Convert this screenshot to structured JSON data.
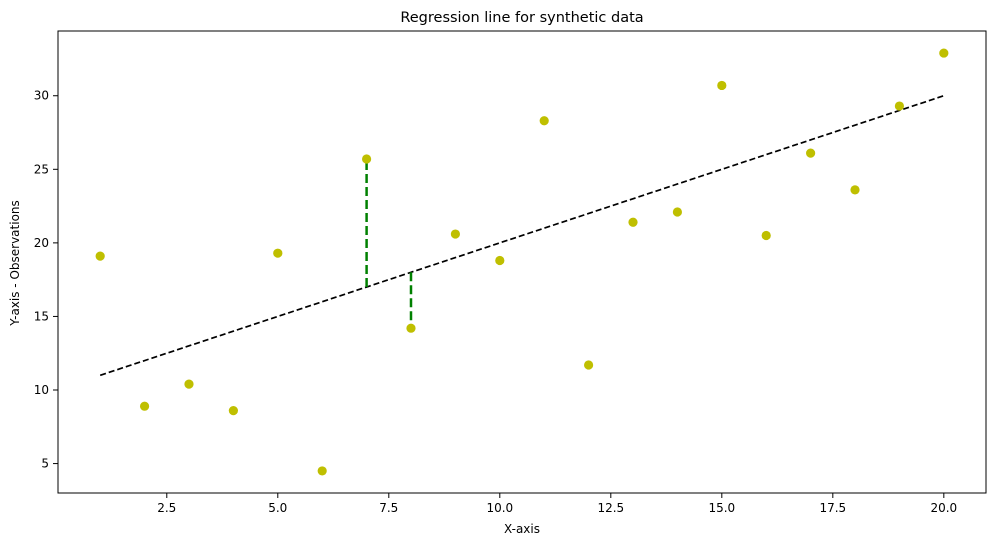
{
  "chart_data": {
    "type": "scatter",
    "title": "Regression line for synthetic data",
    "xlabel": "X-axis",
    "ylabel": "Y-axis - Observations",
    "xlim": [
      0.05,
      20.95
    ],
    "ylim": [
      3.0,
      34.4
    ],
    "xticks": [
      2.5,
      5.0,
      7.5,
      10.0,
      12.5,
      15.0,
      17.5,
      20.0
    ],
    "xtick_labels": [
      "2.5",
      "5.0",
      "7.5",
      "10.0",
      "12.5",
      "15.0",
      "17.5",
      "20.0"
    ],
    "yticks": [
      5,
      10,
      15,
      20,
      25,
      30
    ],
    "ytick_labels": [
      "5",
      "10",
      "15",
      "20",
      "25",
      "30"
    ],
    "grid": false,
    "colors": {
      "points": "#bfbf00",
      "regression": "#000000",
      "residual": "#008000",
      "axes": "#000000"
    },
    "series": [
      {
        "type": "scatter",
        "x": [
          1,
          2,
          3,
          4,
          5,
          6,
          7,
          8,
          9,
          10,
          11,
          12,
          13,
          14,
          15,
          16,
          17,
          18,
          19,
          20
        ],
        "y": [
          19.1,
          8.9,
          10.4,
          8.6,
          19.3,
          4.5,
          25.7,
          14.2,
          20.6,
          18.8,
          28.3,
          11.7,
          21.4,
          22.1,
          30.7,
          20.5,
          26.1,
          23.6,
          29.3,
          32.9
        ]
      },
      {
        "type": "line",
        "style": "dashed",
        "x": [
          1,
          20
        ],
        "y": [
          11.0,
          30.0
        ]
      },
      {
        "type": "residual",
        "style": "dashed",
        "segments": [
          {
            "x": 7,
            "y_start": 17.0,
            "y_end": 25.7
          },
          {
            "x": 8,
            "y_start": 18.0,
            "y_end": 14.2
          }
        ]
      }
    ]
  }
}
